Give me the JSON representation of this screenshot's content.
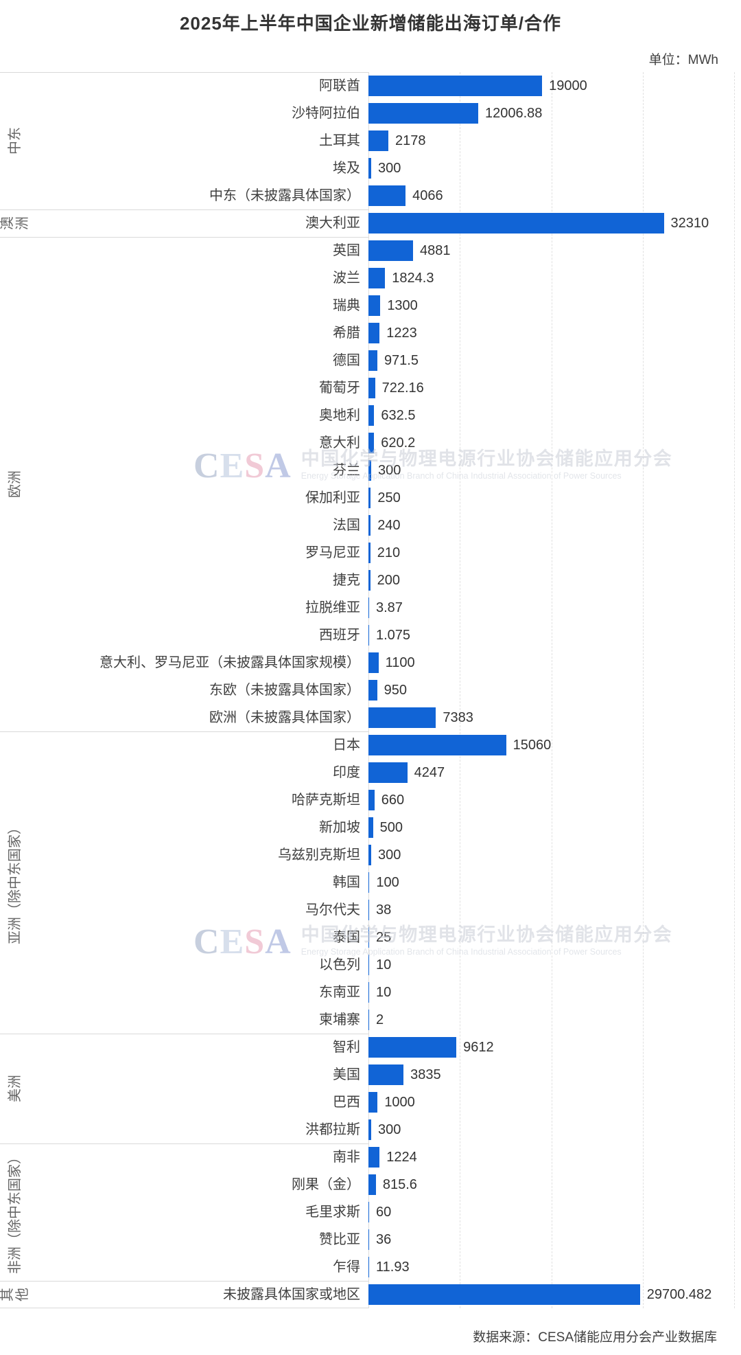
{
  "title": "2025年上半年中国企业新增储能出海订单/合作",
  "unit_label": "单位：MWh",
  "source_label": "数据来源：CESA储能应用分会产业数据库",
  "watermark": {
    "logo_letters": [
      "C",
      "E",
      "S",
      "A"
    ],
    "logo_colors": [
      "#9aa8c4",
      "#b7c6de",
      "#e79fb6",
      "#8e9ed2"
    ],
    "cn": "中国化学与物理电源行业协会储能应用分会",
    "en": "Energy Storage Application Branch of China Industrial Association of Power Sources"
  },
  "colors": {
    "bar": "#1164d6",
    "grid": "#e0e0e0",
    "divider": "#d9d9d9",
    "value_text": "#333333",
    "category_text": "#404040",
    "section_text": "#666666"
  },
  "chart_data": {
    "type": "bar",
    "orientation": "horizontal",
    "unit": "MWh",
    "xlim": [
      0,
      40000
    ],
    "gridlines": [
      10000,
      20000,
      30000,
      40000
    ],
    "grid_style": "dashed",
    "groups": [
      {
        "region": "中东",
        "items": [
          {
            "label": "阿联酋",
            "value": 19000
          },
          {
            "label": "沙特阿拉伯",
            "value": 12006.88
          },
          {
            "label": "土耳其",
            "value": 2178
          },
          {
            "label": "埃及",
            "value": 300
          },
          {
            "label": "中东（未披露具体国家）",
            "value": 4066
          }
        ]
      },
      {
        "region": "澳洲",
        "items": [
          {
            "label": "澳大利亚",
            "value": 32310
          }
        ]
      },
      {
        "region": "欧洲",
        "items": [
          {
            "label": "英国",
            "value": 4881
          },
          {
            "label": "波兰",
            "value": 1824.3
          },
          {
            "label": "瑞典",
            "value": 1300
          },
          {
            "label": "希腊",
            "value": 1223
          },
          {
            "label": "德国",
            "value": 971.5
          },
          {
            "label": "葡萄牙",
            "value": 722.16
          },
          {
            "label": "奥地利",
            "value": 632.5
          },
          {
            "label": "意大利",
            "value": 620.2
          },
          {
            "label": "芬兰",
            "value": 300
          },
          {
            "label": "保加利亚",
            "value": 250
          },
          {
            "label": "法国",
            "value": 240
          },
          {
            "label": "罗马尼亚",
            "value": 210
          },
          {
            "label": "捷克",
            "value": 200
          },
          {
            "label": "拉脱维亚",
            "value": 3.87
          },
          {
            "label": "西班牙",
            "value": 1.075
          },
          {
            "label": "意大利、罗马尼亚（未披露具体国家规模）",
            "value": 1100
          },
          {
            "label": "东欧（未披露具体国家）",
            "value": 950
          },
          {
            "label": "欧洲（未披露具体国家）",
            "value": 7383
          }
        ]
      },
      {
        "region": "亚洲（除中东国家）",
        "items": [
          {
            "label": "日本",
            "value": 15060
          },
          {
            "label": "印度",
            "value": 4247
          },
          {
            "label": "哈萨克斯坦",
            "value": 660
          },
          {
            "label": "新加坡",
            "value": 500
          },
          {
            "label": "乌兹别克斯坦",
            "value": 300
          },
          {
            "label": "韩国",
            "value": 100
          },
          {
            "label": "马尔代夫",
            "value": 38
          },
          {
            "label": "泰国",
            "value": 25
          },
          {
            "label": "以色列",
            "value": 10
          },
          {
            "label": "东南亚",
            "value": 10
          },
          {
            "label": "柬埔寨",
            "value": 2
          }
        ]
      },
      {
        "region": "美洲",
        "items": [
          {
            "label": "智利",
            "value": 9612
          },
          {
            "label": "美国",
            "value": 3835
          },
          {
            "label": "巴西",
            "value": 1000
          },
          {
            "label": "洪都拉斯",
            "value": 300
          }
        ]
      },
      {
        "region": "非洲（除中东国家）",
        "items": [
          {
            "label": "南非",
            "value": 1224
          },
          {
            "label": "刚果（金）",
            "value": 815.6
          },
          {
            "label": "毛里求斯",
            "value": 60
          },
          {
            "label": "赞比亚",
            "value": 36
          },
          {
            "label": "乍得",
            "value": 11.93
          }
        ]
      },
      {
        "region": "其他",
        "items": [
          {
            "label": "未披露具体国家或地区",
            "value": 29700.482
          }
        ]
      }
    ]
  }
}
